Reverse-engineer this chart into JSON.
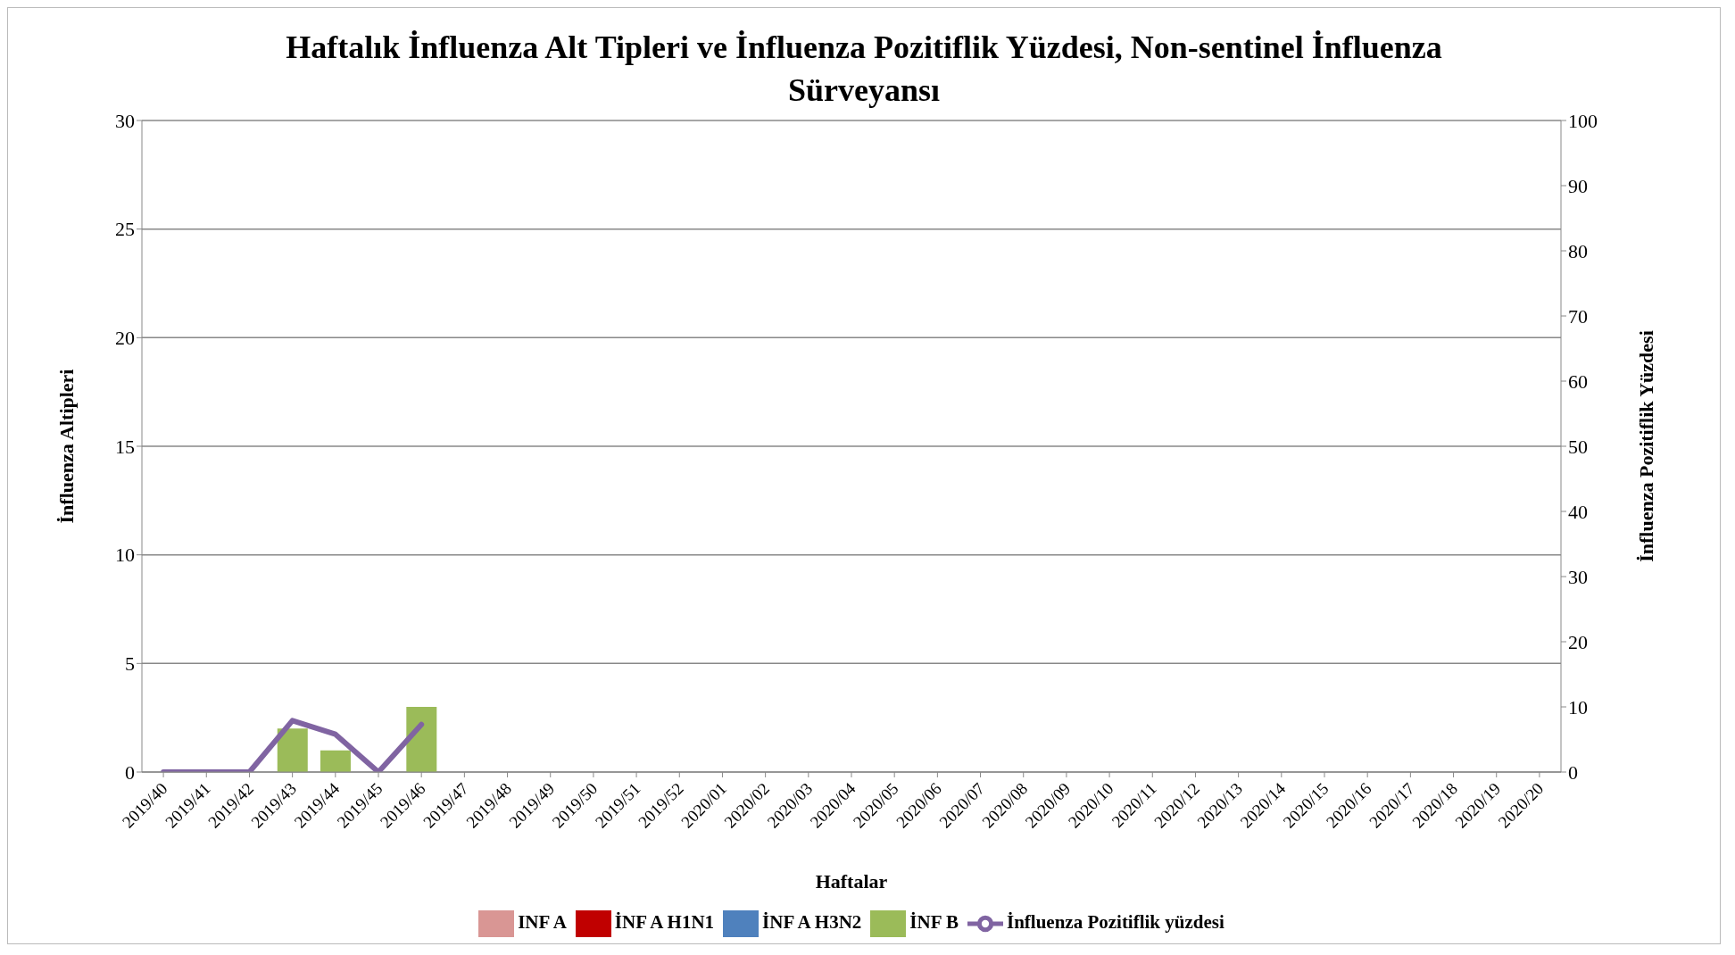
{
  "chart_data": {
    "type": "bar",
    "title": "Haftalık İnfluenza Alt Tipleri ve İnfluenza Pozitiflik Yüzdesi, Non-sentinel İnfluenza Sürveyansı",
    "xlabel": "Haftalar",
    "ylabel": "İnfluenza Altipleri",
    "y2label": "İnfluenza Pozitiflik Yüzdesi",
    "categories": [
      "2019/40",
      "2019/41",
      "2019/42",
      "2019/43",
      "2019/44",
      "2019/45",
      "2019/46",
      "2019/47",
      "2019/48",
      "2019/49",
      "2019/50",
      "2019/51",
      "2019/52",
      "2020/01",
      "2020/02",
      "2020/03",
      "2020/04",
      "2020/05",
      "2020/06",
      "2020/07",
      "2020/08",
      "2020/09",
      "2020/10",
      "2020/11",
      "2020/12",
      "2020/13",
      "2020/14",
      "2020/15",
      "2020/16",
      "2020/17",
      "2020/18",
      "2020/19",
      "2020/20"
    ],
    "stacked": true,
    "series": [
      {
        "name": "INF A",
        "color": "#d99694",
        "values": [
          0,
          0,
          0,
          0,
          0,
          0,
          0,
          null,
          null,
          null,
          null,
          null,
          null,
          null,
          null,
          null,
          null,
          null,
          null,
          null,
          null,
          null,
          null,
          null,
          null,
          null,
          null,
          null,
          null,
          null,
          null,
          null,
          null
        ]
      },
      {
        "name": "İNF A H1N1",
        "color": "#c00000",
        "values": [
          0,
          0,
          0,
          0,
          0,
          0,
          0,
          null,
          null,
          null,
          null,
          null,
          null,
          null,
          null,
          null,
          null,
          null,
          null,
          null,
          null,
          null,
          null,
          null,
          null,
          null,
          null,
          null,
          null,
          null,
          null,
          null,
          null
        ]
      },
      {
        "name": "İNF A H3N2",
        "color": "#4f81bd",
        "values": [
          0,
          0,
          0,
          0,
          0,
          0,
          0,
          null,
          null,
          null,
          null,
          null,
          null,
          null,
          null,
          null,
          null,
          null,
          null,
          null,
          null,
          null,
          null,
          null,
          null,
          null,
          null,
          null,
          null,
          null,
          null,
          null,
          null
        ]
      },
      {
        "name": "İNF B",
        "color": "#9bbb59",
        "values": [
          0,
          0,
          0,
          2,
          1,
          0,
          3,
          null,
          null,
          null,
          null,
          null,
          null,
          null,
          null,
          null,
          null,
          null,
          null,
          null,
          null,
          null,
          null,
          null,
          null,
          null,
          null,
          null,
          null,
          null,
          null,
          null,
          null
        ]
      },
      {
        "name": "İnfluenza Pozitiflik yüzdesi",
        "type": "line",
        "axis": "y2",
        "color": "#8064a2",
        "values": [
          0,
          0,
          0,
          7.9,
          5.8,
          0,
          7.3,
          null,
          null,
          null,
          null,
          null,
          null,
          null,
          null,
          null,
          null,
          null,
          null,
          null,
          null,
          null,
          null,
          null,
          null,
          null,
          null,
          null,
          null,
          null,
          null,
          null,
          null
        ]
      }
    ],
    "ylim": [
      0,
      30
    ],
    "yticks": [
      0,
      5,
      10,
      15,
      20,
      25,
      30
    ],
    "y2lim": [
      0,
      100
    ],
    "y2ticks": [
      0,
      10,
      20,
      30,
      40,
      50,
      60,
      70,
      80,
      90,
      100
    ],
    "grid": "y",
    "legend": "bottom",
    "marker": "none"
  }
}
